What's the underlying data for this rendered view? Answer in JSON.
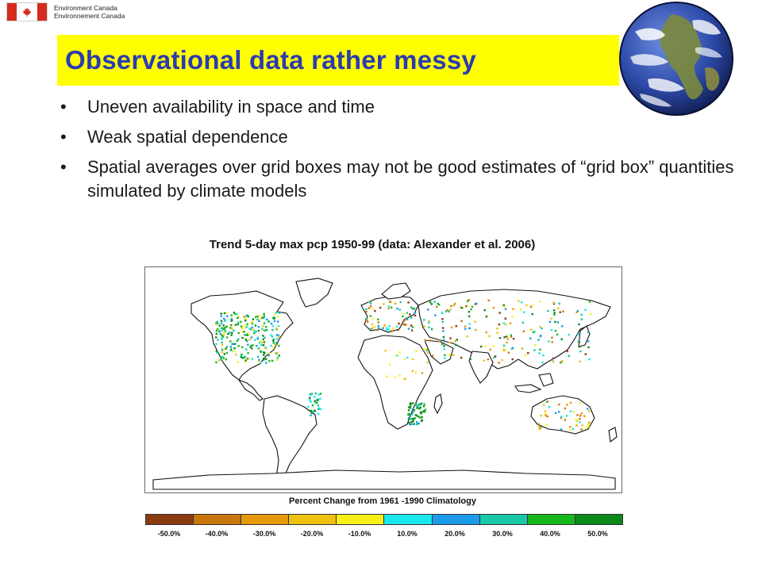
{
  "header": {
    "agency_en": "Environment Canada",
    "agency_fr": "Environnement Canada",
    "flag_icon": "canada-flag-icon"
  },
  "slide": {
    "title": "Observational data rather messy",
    "title_color": "#2b3bb0",
    "title_bg": "#ffff00",
    "globe_icon": "earth-globe-icon",
    "bullets": [
      "Uneven availability in space and time",
      "Weak spatial dependence",
      "Spatial averages over grid boxes may not be good estimates of “grid box” quantities simulated by climate models"
    ]
  },
  "map": {
    "title": "Trend 5-day max pcp 1950-99 (data: Alexander et al. 2006)",
    "legend_title": "Percent Change from 1961 -1990 Climatology",
    "legend": [
      {
        "label": "-50.0%",
        "color": "#8b3a0f"
      },
      {
        "label": "-40.0%",
        "color": "#c8780a"
      },
      {
        "label": "-30.0%",
        "color": "#e69a0a"
      },
      {
        "label": "-20.0%",
        "color": "#eec20f"
      },
      {
        "label": "-10.0%",
        "color": "#f8ef16"
      },
      {
        "label": "10.0%",
        "color": "#18e8ec"
      },
      {
        "label": "20.0%",
        "color": "#1e9be8"
      },
      {
        "label": "30.0%",
        "color": "#18c8a8"
      },
      {
        "label": "40.0%",
        "color": "#18b81c"
      },
      {
        "label": "50.0%",
        "color": "#0a8a18"
      }
    ]
  }
}
